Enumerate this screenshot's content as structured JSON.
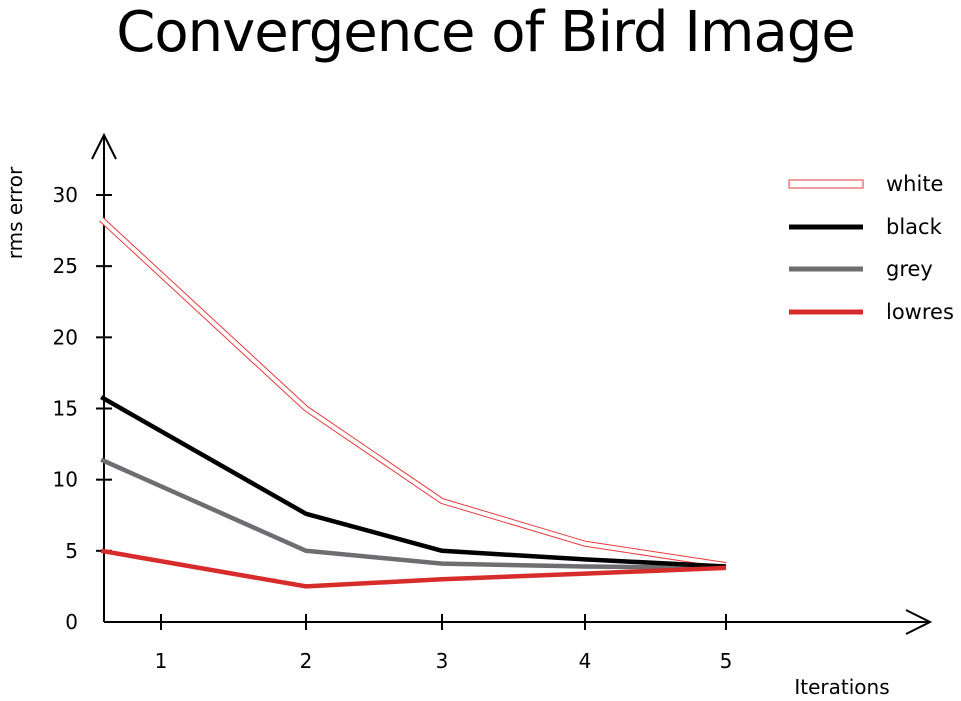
{
  "colors": {
    "white": "#e8393f",
    "black": "#000000",
    "grey": "#6e6e70",
    "lowres": "#d82b2b",
    "axis": "#000000"
  },
  "chart_data": {
    "type": "line",
    "title": "Convergence of Bird Image",
    "xlabel": "Iterations",
    "ylabel": "rms error",
    "xticks": [
      1,
      2,
      3,
      4,
      5
    ],
    "yticks": [
      0,
      5,
      10,
      15,
      20,
      25,
      30
    ],
    "ylim": [
      0,
      30
    ],
    "legend_position": "top-right",
    "grid": false,
    "series": [
      {
        "name": "white",
        "x": [
          0.6,
          2,
          3,
          4,
          5
        ],
        "y": [
          28.3,
          15.0,
          8.5,
          5.5,
          4.0
        ],
        "style": "outline"
      },
      {
        "name": "black",
        "x": [
          0.6,
          2,
          3,
          4,
          5
        ],
        "y": [
          15.8,
          7.6,
          5.0,
          4.4,
          3.9
        ],
        "style": "solid"
      },
      {
        "name": "grey",
        "x": [
          0.6,
          2,
          3,
          4,
          5
        ],
        "y": [
          11.4,
          5.0,
          4.1,
          3.9,
          3.8
        ],
        "style": "solid"
      },
      {
        "name": "lowres",
        "x": [
          0.6,
          2,
          3,
          4,
          5
        ],
        "y": [
          5.0,
          2.5,
          3.0,
          3.4,
          3.8
        ],
        "style": "solid"
      }
    ]
  }
}
